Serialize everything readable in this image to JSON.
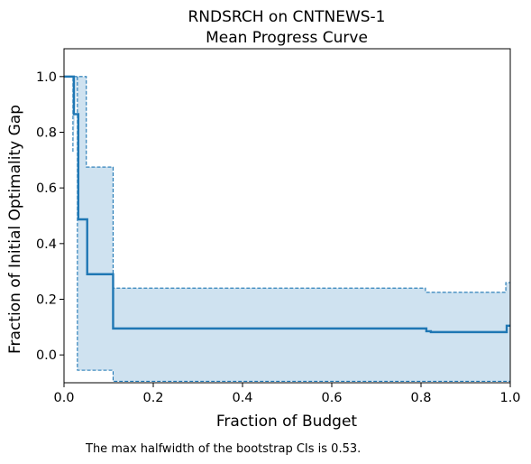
{
  "chart_data": {
    "type": "line",
    "title_line1": "RNDSRCH on CNTNEWS-1",
    "title_line2": "Mean Progress Curve",
    "xlabel": "Fraction of Budget",
    "ylabel": "Fraction of Initial Optimality Gap",
    "xlim": [
      0,
      1
    ],
    "ylim": [
      -0.1,
      1.1
    ],
    "xticks": [
      0,
      0.2,
      0.4,
      0.6,
      0.8,
      1.0
    ],
    "xtick_labels": [
      "0.0",
      "0.2",
      "0.4",
      "0.6",
      "0.8",
      "1.0"
    ],
    "yticks": [
      0,
      0.2,
      0.4,
      0.6,
      0.8,
      1.0
    ],
    "ytick_labels": [
      "0.0",
      "0.2",
      "0.4",
      "0.6",
      "0.8",
      "1.0"
    ],
    "grid": false,
    "color": "#1f77b4",
    "fill_color": "#cfe2f0",
    "mean_curve": {
      "x": [
        0.0,
        0.022,
        0.022,
        0.032,
        0.032,
        0.052,
        0.052,
        0.11,
        0.11,
        0.812,
        0.812,
        0.822,
        0.822,
        0.992,
        0.992,
        1.0
      ],
      "y": [
        1.0,
        1.0,
        0.865,
        0.865,
        0.487,
        0.487,
        0.29,
        0.29,
        0.095,
        0.095,
        0.085,
        0.085,
        0.082,
        0.082,
        0.105,
        0.105
      ]
    },
    "upper_ci": {
      "x": [
        0.02,
        0.02,
        0.05,
        0.05,
        0.11,
        0.11,
        0.81,
        0.81,
        0.99,
        0.99,
        1.0
      ],
      "y": [
        0.73,
        1.0,
        1.0,
        0.675,
        0.675,
        0.24,
        0.24,
        0.225,
        0.225,
        0.26,
        0.26
      ]
    },
    "lower_ci": {
      "x": [
        0.03,
        0.03,
        0.11,
        0.11,
        1.0
      ],
      "y": [
        1.0,
        -0.055,
        -0.055,
        -0.095,
        -0.095
      ]
    },
    "note": "The max halfwidth of the bootstrap CIs is 0.53."
  }
}
